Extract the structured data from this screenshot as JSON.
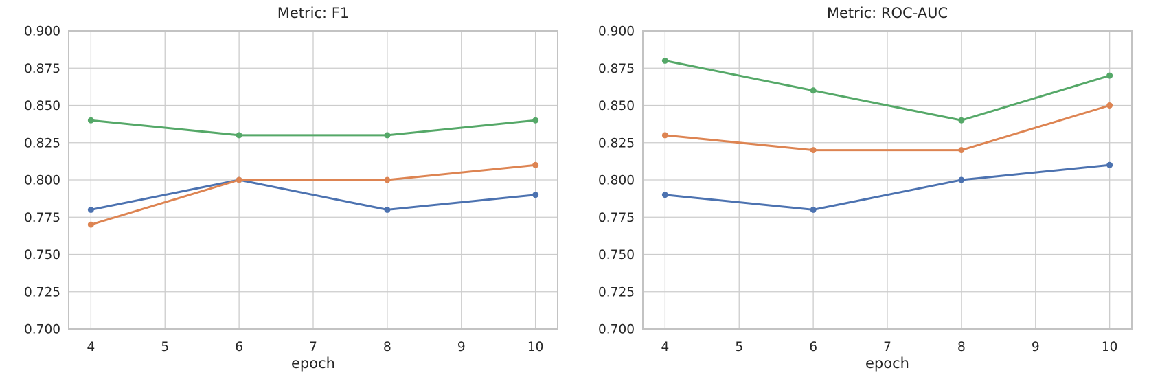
{
  "figure": {
    "background": "#ffffff",
    "grid_color": "#cccccc",
    "spine_color": "#c3c3c3",
    "text_color": "#262626"
  },
  "chart_data": [
    {
      "type": "line",
      "title": "Metric: F1",
      "xlabel": "epoch",
      "ylabel": "",
      "x": [
        4,
        6,
        8,
        10
      ],
      "xlim": [
        3.7,
        10.3
      ],
      "ylim": [
        0.7,
        0.9
      ],
      "x_ticks": [
        4,
        5,
        6,
        7,
        8,
        9,
        10
      ],
      "y_ticks": [
        "0.700",
        "0.725",
        "0.750",
        "0.775",
        "0.800",
        "0.825",
        "0.850",
        "0.875",
        "0.900"
      ],
      "grid": true,
      "legend": "none",
      "series": [
        {
          "name": "series-blue",
          "color": "#4C72B0",
          "values": [
            0.78,
            0.8,
            0.78,
            0.79
          ]
        },
        {
          "name": "series-orange",
          "color": "#DD8452",
          "values": [
            0.77,
            0.8,
            0.8,
            0.81
          ]
        },
        {
          "name": "series-green",
          "color": "#55A868",
          "values": [
            0.84,
            0.83,
            0.83,
            0.84
          ]
        }
      ]
    },
    {
      "type": "line",
      "title": "Metric: ROC-AUC",
      "xlabel": "epoch",
      "ylabel": "",
      "x": [
        4,
        6,
        8,
        10
      ],
      "xlim": [
        3.7,
        10.3
      ],
      "ylim": [
        0.7,
        0.9
      ],
      "x_ticks": [
        4,
        5,
        6,
        7,
        8,
        9,
        10
      ],
      "y_ticks": [
        "0.700",
        "0.725",
        "0.750",
        "0.775",
        "0.800",
        "0.825",
        "0.850",
        "0.875",
        "0.900"
      ],
      "grid": true,
      "legend": "none",
      "series": [
        {
          "name": "series-blue",
          "color": "#4C72B0",
          "values": [
            0.79,
            0.78,
            0.8,
            0.81
          ]
        },
        {
          "name": "series-orange",
          "color": "#DD8452",
          "values": [
            0.83,
            0.82,
            0.82,
            0.85
          ]
        },
        {
          "name": "series-green",
          "color": "#55A868",
          "values": [
            0.88,
            0.86,
            0.84,
            0.87
          ]
        }
      ]
    }
  ]
}
